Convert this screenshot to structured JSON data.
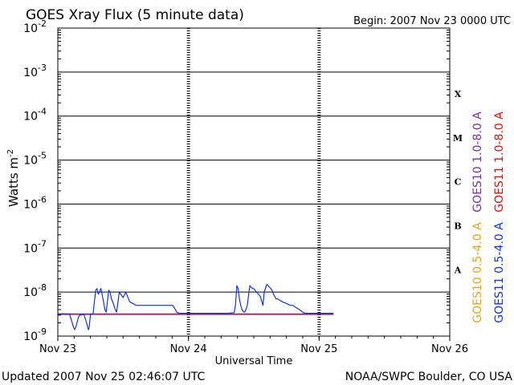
{
  "chart_data": {
    "type": "line",
    "title": "GOES Xray Flux (5 minute data)",
    "begin_label": "Begin:  2007 Nov 23 0000 UTC",
    "ylabel": "Watts m",
    "ylabel_sup": "-2",
    "xlabel": "Universal Time",
    "y_scale": "log",
    "ylim": [
      1e-09,
      0.01
    ],
    "y_ticks": [
      {
        "exp": "-2",
        "value": 0.01
      },
      {
        "exp": "-3",
        "value": 0.001
      },
      {
        "exp": "-4",
        "value": 0.0001
      },
      {
        "exp": "-5",
        "value": 1e-05
      },
      {
        "exp": "-6",
        "value": 1e-06
      },
      {
        "exp": "-7",
        "value": 1e-07
      },
      {
        "exp": "-8",
        "value": 1e-08
      },
      {
        "exp": "-9",
        "value": 1e-09
      }
    ],
    "xlim": [
      0,
      3
    ],
    "x_ticks": [
      {
        "label": "Nov 23",
        "day": 0
      },
      {
        "label": "Nov 24",
        "day": 1
      },
      {
        "label": "Nov 25",
        "day": 2
      },
      {
        "label": "Nov 26",
        "day": 3
      }
    ],
    "flare_classes": [
      {
        "label": "X",
        "value": 0.00032
      },
      {
        "label": "M",
        "value": 3.2e-05
      },
      {
        "label": "C",
        "value": 3.2e-06
      },
      {
        "label": "B",
        "value": 3.2e-07
      },
      {
        "label": "A",
        "value": 3.2e-08
      }
    ],
    "legend": [
      {
        "name": "GOES10 1.0-8.0 A",
        "color": "#7a2ca8"
      },
      {
        "name": "GOES11 1.0-8.0 A",
        "color": "#dd1111"
      },
      {
        "name": "GOES10 0.5-4.0 A",
        "color": "#e8a415"
      },
      {
        "name": "GOES11 0.5-4.0 A",
        "color": "#1133dd"
      }
    ],
    "grid": true,
    "series": [
      {
        "name": "GOES11 1.0-8.0 A",
        "color": "#dd1111",
        "x": [
          0.0,
          0.5,
          1.0,
          1.5,
          2.11
        ],
        "y": [
          3.1e-09,
          3.1e-09,
          3.1e-09,
          3.1e-09,
          3.1e-09
        ]
      },
      {
        "name": "GOES10 1.0-8.0 A",
        "color": "#7a2ca8",
        "x": [
          0.0,
          0.5,
          1.0,
          1.5,
          2.11
        ],
        "y": [
          3.2e-09,
          3.2e-09,
          3.2e-09,
          3.2e-09,
          3.2e-09
        ]
      },
      {
        "name": "GOES11 0.5-4.0 A",
        "color": "#1133dd",
        "x": [
          0.0,
          0.09,
          0.1,
          0.12,
          0.13,
          0.14,
          0.15,
          0.16,
          0.17,
          0.2,
          0.22,
          0.23,
          0.235,
          0.24,
          0.25,
          0.27,
          0.28,
          0.29,
          0.3,
          0.31,
          0.33,
          0.35,
          0.36,
          0.37,
          0.39,
          0.4,
          0.41,
          0.42,
          0.44,
          0.45,
          0.47,
          0.5,
          0.52,
          0.55,
          0.6,
          0.7,
          0.75,
          0.8,
          0.88,
          0.9,
          0.91,
          0.93,
          0.97,
          1.0,
          1.1,
          1.2,
          1.3,
          1.35,
          1.36,
          1.37,
          1.38,
          1.39,
          1.4,
          1.41,
          1.42,
          1.43,
          1.44,
          1.45,
          1.47,
          1.48,
          1.49,
          1.5,
          1.52,
          1.55,
          1.57,
          1.58,
          1.6,
          1.62,
          1.64,
          1.65,
          1.66,
          1.67,
          1.68,
          1.7,
          1.72,
          1.75,
          1.78,
          1.8,
          1.82,
          1.85,
          1.88,
          1.9,
          1.92,
          2.0,
          2.05,
          2.11
        ],
        "y": [
          3.2e-09,
          3.2e-09,
          2.5e-09,
          1.6e-09,
          1.4e-09,
          1.7e-09,
          2.2e-09,
          2.8e-09,
          3e-09,
          3.1e-09,
          2e-09,
          1.5e-09,
          1.4e-09,
          1.6e-09,
          3.1e-09,
          3.2e-09,
          6e-09,
          1.1e-08,
          1.2e-08,
          9e-09,
          1.2e-08,
          6e-09,
          4e-09,
          3.5e-09,
          1.1e-08,
          1e-08,
          7e-09,
          6e-09,
          4e-09,
          3.5e-09,
          1e-08,
          7.5e-09,
          1e-08,
          6e-09,
          5e-09,
          5e-09,
          5e-09,
          5e-09,
          5e-09,
          4e-09,
          3.5e-09,
          3.3e-09,
          3.3e-09,
          3.3e-09,
          3.3e-09,
          3.3e-09,
          3.3e-09,
          3.4e-09,
          5e-09,
          1.4e-08,
          1.2e-08,
          7e-09,
          5e-09,
          4e-09,
          3.6e-09,
          3.5e-09,
          4e-09,
          5e-09,
          1.4e-08,
          1.3e-08,
          1.2e-08,
          1.2e-08,
          1e-08,
          8e-09,
          5e-09,
          1e-08,
          1.5e-08,
          1.3e-08,
          1.1e-08,
          9e-09,
          8e-09,
          7e-09,
          7e-09,
          6.5e-09,
          6e-09,
          5.5e-09,
          5e-09,
          5e-09,
          4.5e-09,
          4e-09,
          3.4e-09,
          3.3e-09,
          3.3e-09,
          3.3e-09,
          3.3e-09,
          3.3e-09
        ]
      }
    ]
  },
  "footer": {
    "updated": "Updated 2007 Nov 25 02:46:07 UTC",
    "credit": "NOAA/SWPC Boulder, CO USA"
  }
}
